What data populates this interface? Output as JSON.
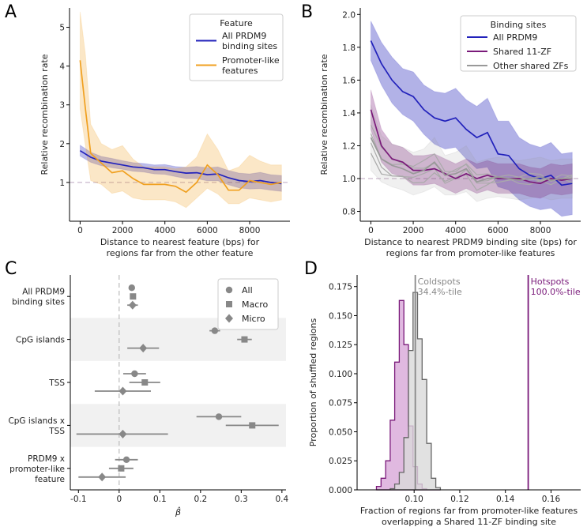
{
  "chart_data": [
    {
      "panel": "A",
      "type": "line",
      "xlabel": "Distance to nearest feature (bps) for",
      "xlabel2": "regions far from the other feature",
      "ylabel": "Relative recombination rate",
      "xlim": [
        -500,
        9900
      ],
      "ylim": [
        0,
        5.5
      ],
      "xticks": [
        0,
        2000,
        4000,
        6000,
        8000
      ],
      "yticks": [
        1,
        2,
        3,
        4,
        5
      ],
      "reference_line": 1,
      "legend_title": "Feature",
      "series": [
        {
          "name": "All PRDM9 binding sites",
          "legend_lines": [
            "All PRDM9",
            "binding sites"
          ],
          "color": "#2222bb",
          "x": [
            0,
            500,
            1000,
            1500,
            2000,
            2500,
            3000,
            3500,
            4000,
            4500,
            5000,
            5500,
            6000,
            6500,
            7000,
            7500,
            8000,
            8500,
            9000,
            9500
          ],
          "y": [
            1.82,
            1.65,
            1.55,
            1.5,
            1.45,
            1.4,
            1.38,
            1.33,
            1.33,
            1.28,
            1.24,
            1.25,
            1.2,
            1.22,
            1.12,
            1.05,
            1.02,
            1.05,
            1.0,
            0.97
          ],
          "lower": [
            1.68,
            1.52,
            1.43,
            1.38,
            1.34,
            1.29,
            1.27,
            1.22,
            1.21,
            1.15,
            1.1,
            1.1,
            1.04,
            1.04,
            0.94,
            0.86,
            0.83,
            0.84,
            0.8,
            0.77
          ],
          "upper": [
            1.96,
            1.78,
            1.67,
            1.62,
            1.56,
            1.51,
            1.49,
            1.45,
            1.46,
            1.41,
            1.39,
            1.41,
            1.38,
            1.4,
            1.31,
            1.24,
            1.22,
            1.26,
            1.2,
            1.18
          ]
        },
        {
          "name": "Promoter-like features",
          "legend_lines": [
            "Promoter-like",
            "features"
          ],
          "color": "#f0a020",
          "x": [
            0,
            250,
            500,
            1000,
            1500,
            2000,
            2500,
            3000,
            3500,
            4000,
            4500,
            5000,
            5500,
            6000,
            6500,
            7000,
            7500,
            8000,
            8500,
            9000,
            9500
          ],
          "y": [
            4.15,
            2.9,
            1.75,
            1.5,
            1.25,
            1.3,
            1.1,
            0.95,
            0.95,
            0.95,
            0.9,
            0.75,
            1.0,
            1.45,
            1.2,
            0.8,
            0.8,
            1.05,
            1.0,
            0.95,
            1.0
          ],
          "lower": [
            2.9,
            1.95,
            1.05,
            0.95,
            0.72,
            0.78,
            0.6,
            0.55,
            0.55,
            0.55,
            0.5,
            0.35,
            0.6,
            0.85,
            0.7,
            0.45,
            0.45,
            0.6,
            0.55,
            0.5,
            0.55
          ],
          "upper": [
            5.4,
            4.3,
            2.5,
            2.0,
            1.85,
            1.95,
            1.6,
            1.4,
            1.4,
            1.4,
            1.35,
            1.4,
            1.65,
            2.25,
            1.85,
            1.3,
            1.4,
            1.7,
            1.55,
            1.45,
            1.45
          ]
        }
      ]
    },
    {
      "panel": "B",
      "type": "line",
      "xlabel": "Distance to nearest PRDM9 binding site (bps) for",
      "xlabel2": "regions far from promoter-like features",
      "ylabel": "Relative recombination rate",
      "xlim": [
        -500,
        9900
      ],
      "ylim": [
        0.74,
        2.04
      ],
      "xticks": [
        0,
        2000,
        4000,
        6000,
        8000
      ],
      "yticks": [
        0.8,
        1.0,
        1.2,
        1.4,
        1.6,
        1.8,
        2.0
      ],
      "reference_line": 1,
      "legend_title": "Binding sites",
      "series": [
        {
          "name": "All PRDM9",
          "color": "#2222bb",
          "x": [
            0,
            500,
            1000,
            1500,
            2000,
            2500,
            3000,
            3500,
            4000,
            4500,
            5000,
            5500,
            6000,
            6500,
            7000,
            7500,
            8000,
            8500,
            9000,
            9500
          ],
          "y": [
            1.84,
            1.7,
            1.6,
            1.53,
            1.5,
            1.42,
            1.37,
            1.35,
            1.37,
            1.3,
            1.25,
            1.28,
            1.15,
            1.14,
            1.06,
            1.02,
            1.0,
            1.02,
            0.96,
            0.97
          ],
          "lower": [
            1.72,
            1.57,
            1.46,
            1.39,
            1.35,
            1.27,
            1.21,
            1.18,
            1.19,
            1.12,
            1.06,
            1.07,
            0.95,
            0.93,
            0.87,
            0.83,
            0.81,
            0.82,
            0.77,
            0.78
          ],
          "upper": [
            1.96,
            1.83,
            1.74,
            1.67,
            1.65,
            1.57,
            1.53,
            1.52,
            1.55,
            1.48,
            1.44,
            1.49,
            1.35,
            1.35,
            1.25,
            1.21,
            1.19,
            1.22,
            1.15,
            1.16
          ]
        },
        {
          "name": "Shared 11-ZF",
          "color": "#7a1a7a",
          "x": [
            0,
            500,
            1000,
            1500,
            2000,
            2500,
            3000,
            3500,
            4000,
            4500,
            5000,
            5500,
            6000,
            6500,
            7000,
            7500,
            8000,
            8500,
            9000,
            9500
          ],
          "y": [
            1.42,
            1.2,
            1.12,
            1.1,
            1.05,
            1.05,
            1.06,
            1.03,
            1.0,
            1.03,
            1.0,
            1.02,
            1.0,
            1.0,
            1.0,
            0.98,
            0.97,
            1.0,
            0.99,
            1.0
          ],
          "lower": [
            1.3,
            1.1,
            1.03,
            1.01,
            0.96,
            0.96,
            0.97,
            0.94,
            0.91,
            0.94,
            0.91,
            0.93,
            0.91,
            0.91,
            0.91,
            0.89,
            0.88,
            0.91,
            0.9,
            0.91
          ],
          "upper": [
            1.54,
            1.3,
            1.21,
            1.19,
            1.14,
            1.14,
            1.15,
            1.12,
            1.09,
            1.12,
            1.09,
            1.11,
            1.09,
            1.09,
            1.09,
            1.07,
            1.06,
            1.09,
            1.08,
            1.09
          ]
        },
        {
          "name": "Other shared ZFs",
          "color": "#999999",
          "x": [
            0,
            500,
            1000,
            1500,
            2000,
            2500,
            3000,
            3500,
            4000,
            4500,
            5000,
            5500,
            6000,
            6500,
            7000,
            7500,
            8000,
            8500,
            9000,
            9500
          ],
          "y": [
            1.25,
            1.12,
            1.08,
            1.06,
            1.03,
            1.05,
            1.1,
            1.02,
            1.03,
            1.06,
            0.98,
            1.0,
            1.01,
            1.0,
            0.99,
            1.0,
            1.01,
            0.99,
            1.0,
            1.0
          ],
          "lower": [
            1.05,
            0.98,
            0.95,
            0.93,
            0.9,
            0.92,
            0.95,
            0.9,
            0.9,
            0.92,
            0.86,
            0.88,
            0.89,
            0.88,
            0.87,
            0.88,
            0.89,
            0.87,
            0.88,
            0.88
          ],
          "upper": [
            1.45,
            1.26,
            1.21,
            1.19,
            1.16,
            1.18,
            1.25,
            1.14,
            1.16,
            1.2,
            1.1,
            1.12,
            1.13,
            1.12,
            1.11,
            1.12,
            1.13,
            1.11,
            1.12,
            1.12
          ]
        }
      ]
    },
    {
      "panel": "C",
      "type": "scatter",
      "xlabel": "β̂",
      "xlim": [
        -0.12,
        0.41
      ],
      "xticks": [
        -0.1,
        0.0,
        0.1,
        0.2,
        0.3,
        0.4
      ],
      "reference_line": 0,
      "categories": [
        [
          "All PRDM9",
          "binding sites"
        ],
        [
          "CpG islands"
        ],
        [
          "TSS"
        ],
        [
          "CpG islands x",
          "TSS"
        ],
        [
          "PRDM9 x",
          "promoter-like",
          "feature"
        ]
      ],
      "shaded_categories": [
        1,
        3
      ],
      "series": [
        {
          "name": "All",
          "marker": "circle",
          "values": [
            0.031,
            0.235,
            0.038,
            0.245,
            0.018
          ],
          "ci_low": [
            0.026,
            0.222,
            0.01,
            0.19,
            -0.01
          ],
          "ci_high": [
            0.036,
            0.248,
            0.066,
            0.3,
            0.046
          ]
        },
        {
          "name": "Macro",
          "marker": "square",
          "values": [
            0.034,
            0.308,
            0.063,
            0.327,
            0.005
          ],
          "ci_low": [
            0.028,
            0.29,
            0.025,
            0.262,
            -0.025
          ],
          "ci_high": [
            0.04,
            0.326,
            0.101,
            0.392,
            0.035
          ]
        },
        {
          "name": "Micro",
          "marker": "diamond",
          "values": [
            0.033,
            0.059,
            0.009,
            0.009,
            -0.042
          ],
          "ci_low": [
            0.02,
            0.02,
            -0.06,
            -0.105,
            -0.1
          ],
          "ci_high": [
            0.046,
            0.098,
            0.078,
            0.12,
            0.016
          ]
        }
      ],
      "marker_color": "#888888"
    },
    {
      "panel": "D",
      "type": "histogram",
      "xlabel": "Fraction of regions far from promoter-like features",
      "xlabel2": "overlapping a Shared 11-ZF binding site",
      "ylabel": "Proportion of shuffled regions",
      "xlim": [
        0.075,
        0.173
      ],
      "ylim": [
        0,
        0.185
      ],
      "xticks": [
        0.1,
        0.12,
        0.14,
        0.16
      ],
      "yticks": [
        0.0,
        0.025,
        0.05,
        0.075,
        0.1,
        0.125,
        0.15,
        0.175
      ],
      "bin_edges": [
        0.0835,
        0.0855,
        0.0875,
        0.0895,
        0.0915,
        0.0935,
        0.0955,
        0.0975,
        0.0995,
        0.1015,
        0.1035,
        0.1055,
        0.1075,
        0.1095,
        0.1115
      ],
      "series": [
        {
          "name": "Hotspots",
          "color": "#7a1a7a",
          "fill": "#d8a8d8",
          "counts": [
            0.003,
            0.01,
            0.025,
            0.06,
            0.11,
            0.163,
            0.125,
            0.055,
            0.02,
            0.005,
            0.001,
            0.0,
            0.0,
            0.0
          ]
        },
        {
          "name": "Coldspots",
          "color": "#666666",
          "fill": "#d9d9d9",
          "counts": [
            0.0,
            0.0,
            0.0,
            0.001,
            0.005,
            0.015,
            0.045,
            0.12,
            0.17,
            0.13,
            0.095,
            0.04,
            0.01,
            0.002
          ]
        }
      ],
      "vlines": [
        {
          "x": 0.1005,
          "color": "#888888",
          "label": [
            "Coldspots",
            "34.4%-tile"
          ]
        },
        {
          "x": 0.15,
          "color": "#7a1a7a",
          "label": [
            "Hotspots",
            "100.0%-tile"
          ]
        }
      ]
    }
  ],
  "panel_letters": [
    "A",
    "B",
    "C",
    "D"
  ]
}
